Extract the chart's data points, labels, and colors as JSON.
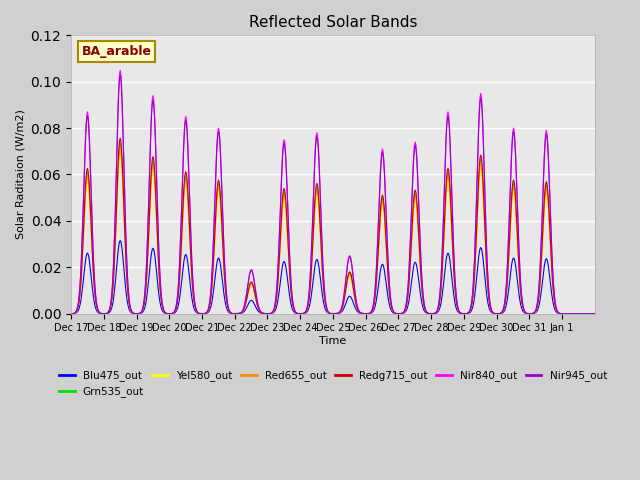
{
  "title": "Reflected Solar Bands",
  "xlabel": "Time",
  "ylabel": "Solar Raditaion (W/m2)",
  "annotation": "BA_arable",
  "ylim": [
    0,
    0.12
  ],
  "n_days": 16,
  "series": [
    {
      "label": "Blu475_out",
      "color": "#0000ff",
      "scale": 0.3
    },
    {
      "label": "Grn535_out",
      "color": "#00dd00",
      "scale": 0.7
    },
    {
      "label": "Yel580_out",
      "color": "#ffff00",
      "scale": 0.65
    },
    {
      "label": "Red655_out",
      "color": "#ff8800",
      "scale": 0.68
    },
    {
      "label": "Redg715_out",
      "color": "#cc0000",
      "scale": 0.72
    },
    {
      "label": "Nir840_out",
      "color": "#ff00ff",
      "scale": 1.0
    },
    {
      "label": "Nir945_out",
      "color": "#9900cc",
      "scale": 0.98
    }
  ],
  "nir840_peaks": [
    0.087,
    0.105,
    0.094,
    0.085,
    0.08,
    0.019,
    0.075,
    0.078,
    0.025,
    0.071,
    0.074,
    0.087,
    0.095,
    0.08,
    0.079,
    0.0
  ],
  "xtick_labels": [
    "Dec 17",
    "Dec 18",
    "Dec 19",
    "Dec 20",
    "Dec 21",
    "Dec 22",
    "Dec 23",
    "Dec 24",
    "Dec 25",
    "Dec 26",
    "Dec 27",
    "Dec 28",
    "Dec 29",
    "Dec 30",
    "Dec 31",
    "Jan 1"
  ],
  "fig_facecolor": "#d0d0d0",
  "ax_facecolor": "#e8e8e8"
}
